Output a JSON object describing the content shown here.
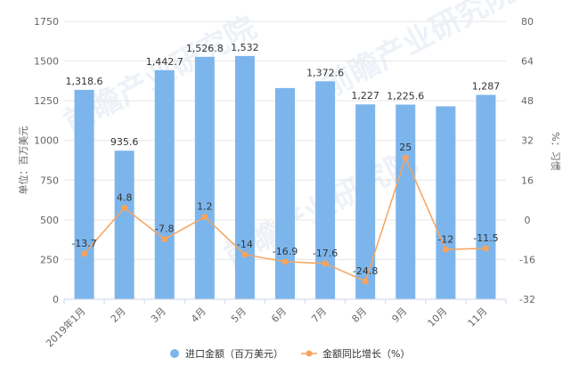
{
  "chart_data": {
    "type": "bar",
    "categories": [
      "2019年1月",
      "2月",
      "3月",
      "4月",
      "5月",
      "6月",
      "7月",
      "8月",
      "9月",
      "10月",
      "11月"
    ],
    "series": [
      {
        "name": "进口金额（百万美元）",
        "type": "bar",
        "axis": "left",
        "color": "#7cb5ec",
        "values": [
          1318.6,
          935.6,
          1442.7,
          1526.8,
          1532,
          1330,
          1372.6,
          1227,
          1225.6,
          1215,
          1287
        ],
        "labels": [
          "1,318.6",
          "935.6",
          "1,442.7",
          "1,526.8",
          "1,532",
          "",
          "1,372.6",
          "1,227",
          "1,225.6",
          "",
          "1,287"
        ]
      },
      {
        "name": "金额同比增长（%）",
        "type": "line",
        "axis": "right",
        "color": "#f7a35c",
        "values": [
          -13.7,
          4.8,
          -7.8,
          1.2,
          -14,
          -16.9,
          -17.6,
          -24.8,
          25,
          -12,
          -11.5
        ],
        "labels": [
          "-13.7",
          "4.8",
          "-7.8",
          "1.2",
          "-14",
          "-16.9",
          "-17.6",
          "-24.8",
          "25",
          "-12",
          "-11.5"
        ]
      }
    ],
    "ylabel_left": "单位：百万美元",
    "ylabel_right": "%：习惯",
    "ylim_left": [
      0,
      1750
    ],
    "yticks_left": [
      0,
      250,
      500,
      750,
      1000,
      1250,
      1500,
      1750
    ],
    "ylim_right": [
      -32,
      80
    ],
    "yticks_right": [
      -32,
      -16,
      0,
      16,
      32,
      48,
      64,
      80
    ],
    "grid": true,
    "legend": "bottom"
  },
  "watermark": "前瞻产业研究院"
}
